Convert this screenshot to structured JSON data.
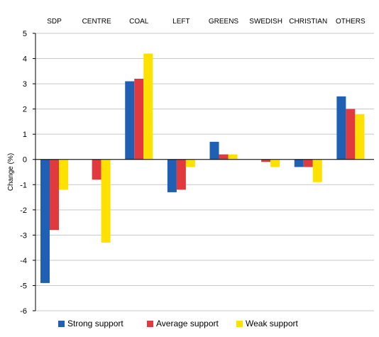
{
  "chart_data": {
    "type": "bar",
    "categories": [
      "SDP",
      "CENTRE",
      "COAL",
      "LEFT",
      "GREENS",
      "SWEDISH",
      "CHRISTIAN",
      "OTHERS"
    ],
    "ylabel": "Change (%)",
    "ylim": [
      -6,
      5
    ],
    "yticks": [
      -6,
      -5,
      -4,
      -3,
      -2,
      -1,
      0,
      1,
      2,
      3,
      4,
      5
    ],
    "grid": true,
    "category_labels_position": "top",
    "legend_position": "bottom",
    "series": [
      {
        "name": "Strong support",
        "color": "#1f5fb4",
        "values": [
          -4.9,
          0,
          3.1,
          -1.3,
          0.7,
          0,
          -0.3,
          2.5
        ]
      },
      {
        "name": "Average support",
        "color": "#e03a3e",
        "values": [
          -2.8,
          -0.8,
          3.2,
          -1.2,
          0.2,
          -0.1,
          -0.3,
          2.0
        ]
      },
      {
        "name": "Weak support",
        "color": "#ffe100",
        "values": [
          -1.2,
          -3.3,
          4.2,
          -0.3,
          0.2,
          -0.3,
          -0.9,
          1.8
        ]
      }
    ]
  }
}
